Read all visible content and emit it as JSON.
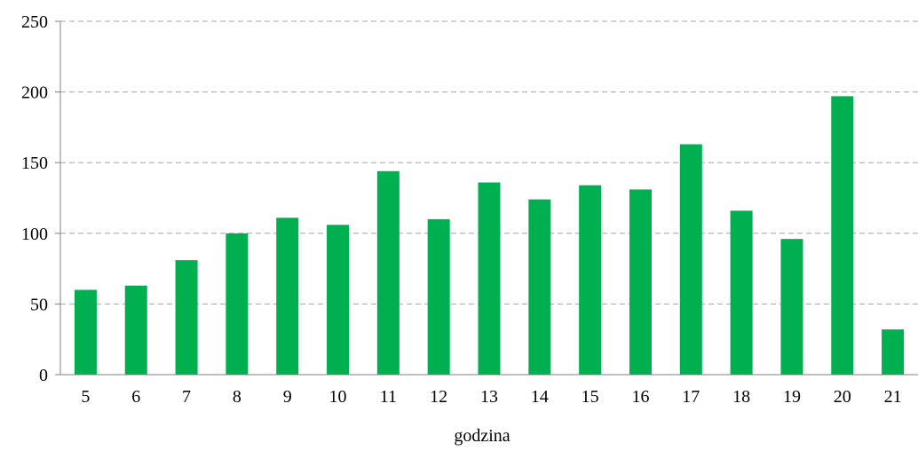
{
  "chart_data": {
    "type": "bar",
    "title": "",
    "xlabel": "godzina",
    "ylabel": "",
    "categories": [
      "5",
      "6",
      "7",
      "8",
      "9",
      "10",
      "11",
      "12",
      "13",
      "14",
      "15",
      "16",
      "17",
      "18",
      "19",
      "20",
      "21"
    ],
    "values": [
      60,
      63,
      81,
      100,
      111,
      106,
      144,
      110,
      136,
      124,
      134,
      131,
      163,
      116,
      96,
      197,
      32
    ],
    "ylim": [
      0,
      250
    ],
    "yticks": [
      "0",
      "50",
      "100",
      "150",
      "200",
      "250"
    ],
    "grid": true,
    "legend": "none",
    "colors": {
      "bar": "#00b050",
      "grid": "#a6a6a6",
      "axis": "#808080"
    }
  }
}
